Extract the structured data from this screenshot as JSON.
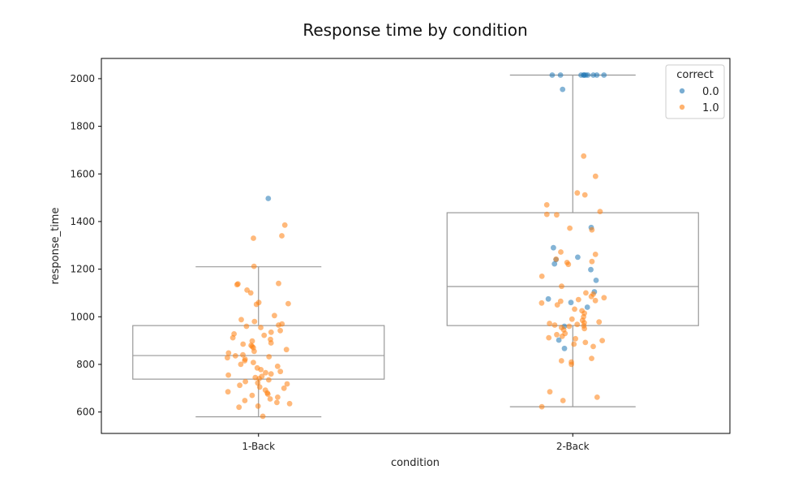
{
  "chart_data": {
    "type": "box-strip",
    "title": "Response time by condition",
    "xlabel": "condition",
    "ylabel": "response_time",
    "categories": [
      "1-Back",
      "2-Back"
    ],
    "ylim": [
      510,
      2085
    ],
    "yticks": [
      600,
      800,
      1000,
      1200,
      1400,
      1600,
      1800,
      2000
    ],
    "grid": false,
    "legend": {
      "title": "correct",
      "placement": "top-right",
      "entries": [
        {
          "label": "0.0",
          "color": "#1f77b4"
        },
        {
          "label": "1.0",
          "color": "#ff7f0e"
        }
      ]
    },
    "box_color": "#999999",
    "boxes": [
      {
        "category": "1-Back",
        "whisker_low": 580,
        "q1": 738,
        "median": 837,
        "q3": 963,
        "whisker_high": 1210
      },
      {
        "category": "2-Back",
        "whisker_low": 622,
        "q1": 963,
        "median": 1127,
        "q3": 1437,
        "whisker_high": 2015
      }
    ],
    "series": [
      {
        "name": "0.0",
        "color": "#1f77b4",
        "points": [
          [
            "1-Back",
            1497
          ],
          [
            "2-Back",
            2015
          ],
          [
            "2-Back",
            2015
          ],
          [
            "2-Back",
            2015
          ],
          [
            "2-Back",
            2015
          ],
          [
            "2-Back",
            2015
          ],
          [
            "2-Back",
            2015
          ],
          [
            "2-Back",
            2015
          ],
          [
            "2-Back",
            2015
          ],
          [
            "2-Back",
            2015
          ],
          [
            "2-Back",
            2015
          ],
          [
            "2-Back",
            1955
          ],
          [
            "2-Back",
            1375
          ],
          [
            "2-Back",
            1290
          ],
          [
            "2-Back",
            1250
          ],
          [
            "2-Back",
            1240
          ],
          [
            "2-Back",
            1222
          ],
          [
            "2-Back",
            1198
          ],
          [
            "2-Back",
            1153
          ],
          [
            "2-Back",
            1105
          ],
          [
            "2-Back",
            1075
          ],
          [
            "2-Back",
            1060
          ],
          [
            "2-Back",
            1040
          ],
          [
            "2-Back",
            960
          ],
          [
            "2-Back",
            902
          ],
          [
            "2-Back",
            867
          ]
        ]
      },
      {
        "name": "1.0",
        "color": "#ff7f0e",
        "points": [
          [
            "1-Back",
            1385
          ],
          [
            "1-Back",
            1340
          ],
          [
            "1-Back",
            1330
          ],
          [
            "1-Back",
            1212
          ],
          [
            "1-Back",
            1140
          ],
          [
            "1-Back",
            1138
          ],
          [
            "1-Back",
            1135
          ],
          [
            "1-Back",
            1112
          ],
          [
            "1-Back",
            1100
          ],
          [
            "1-Back",
            1060
          ],
          [
            "1-Back",
            1055
          ],
          [
            "1-Back",
            1052
          ],
          [
            "1-Back",
            1005
          ],
          [
            "1-Back",
            988
          ],
          [
            "1-Back",
            980
          ],
          [
            "1-Back",
            970
          ],
          [
            "1-Back",
            965
          ],
          [
            "1-Back",
            960
          ],
          [
            "1-Back",
            955
          ],
          [
            "1-Back",
            942
          ],
          [
            "1-Back",
            935
          ],
          [
            "1-Back",
            928
          ],
          [
            "1-Back",
            922
          ],
          [
            "1-Back",
            912
          ],
          [
            "1-Back",
            905
          ],
          [
            "1-Back",
            898
          ],
          [
            "1-Back",
            890
          ],
          [
            "1-Back",
            885
          ],
          [
            "1-Back",
            880
          ],
          [
            "1-Back",
            875
          ],
          [
            "1-Back",
            870
          ],
          [
            "1-Back",
            862
          ],
          [
            "1-Back",
            855
          ],
          [
            "1-Back",
            848
          ],
          [
            "1-Back",
            840
          ],
          [
            "1-Back",
            836
          ],
          [
            "1-Back",
            832
          ],
          [
            "1-Back",
            828
          ],
          [
            "1-Back",
            822
          ],
          [
            "1-Back",
            815
          ],
          [
            "1-Back",
            808
          ],
          [
            "1-Back",
            800
          ],
          [
            "1-Back",
            792
          ],
          [
            "1-Back",
            785
          ],
          [
            "1-Back",
            778
          ],
          [
            "1-Back",
            770
          ],
          [
            "1-Back",
            765
          ],
          [
            "1-Back",
            760
          ],
          [
            "1-Back",
            755
          ],
          [
            "1-Back",
            750
          ],
          [
            "1-Back",
            745
          ],
          [
            "1-Back",
            740
          ],
          [
            "1-Back",
            735
          ],
          [
            "1-Back",
            728
          ],
          [
            "1-Back",
            722
          ],
          [
            "1-Back",
            718
          ],
          [
            "1-Back",
            712
          ],
          [
            "1-Back",
            705
          ],
          [
            "1-Back",
            700
          ],
          [
            "1-Back",
            692
          ],
          [
            "1-Back",
            685
          ],
          [
            "1-Back",
            680
          ],
          [
            "1-Back",
            675
          ],
          [
            "1-Back",
            670
          ],
          [
            "1-Back",
            662
          ],
          [
            "1-Back",
            655
          ],
          [
            "1-Back",
            648
          ],
          [
            "1-Back",
            640
          ],
          [
            "1-Back",
            635
          ],
          [
            "1-Back",
            625
          ],
          [
            "1-Back",
            620
          ],
          [
            "1-Back",
            582
          ],
          [
            "2-Back",
            1675
          ],
          [
            "2-Back",
            1590
          ],
          [
            "2-Back",
            1520
          ],
          [
            "2-Back",
            1512
          ],
          [
            "2-Back",
            1470
          ],
          [
            "2-Back",
            1442
          ],
          [
            "2-Back",
            1430
          ],
          [
            "2-Back",
            1428
          ],
          [
            "2-Back",
            1372
          ],
          [
            "2-Back",
            1365
          ],
          [
            "2-Back",
            1272
          ],
          [
            "2-Back",
            1262
          ],
          [
            "2-Back",
            1242
          ],
          [
            "2-Back",
            1232
          ],
          [
            "2-Back",
            1228
          ],
          [
            "2-Back",
            1220
          ],
          [
            "2-Back",
            1170
          ],
          [
            "2-Back",
            1128
          ],
          [
            "2-Back",
            1100
          ],
          [
            "2-Back",
            1095
          ],
          [
            "2-Back",
            1085
          ],
          [
            "2-Back",
            1080
          ],
          [
            "2-Back",
            1072
          ],
          [
            "2-Back",
            1068
          ],
          [
            "2-Back",
            1065
          ],
          [
            "2-Back",
            1058
          ],
          [
            "2-Back",
            1050
          ],
          [
            "2-Back",
            1032
          ],
          [
            "2-Back",
            1025
          ],
          [
            "2-Back",
            1015
          ],
          [
            "2-Back",
            1000
          ],
          [
            "2-Back",
            990
          ],
          [
            "2-Back",
            985
          ],
          [
            "2-Back",
            978
          ],
          [
            "2-Back",
            975
          ],
          [
            "2-Back",
            972
          ],
          [
            "2-Back",
            968
          ],
          [
            "2-Back",
            965
          ],
          [
            "2-Back",
            962
          ],
          [
            "2-Back",
            960
          ],
          [
            "2-Back",
            955
          ],
          [
            "2-Back",
            950
          ],
          [
            "2-Back",
            945
          ],
          [
            "2-Back",
            930
          ],
          [
            "2-Back",
            925
          ],
          [
            "2-Back",
            918
          ],
          [
            "2-Back",
            912
          ],
          [
            "2-Back",
            908
          ],
          [
            "2-Back",
            900
          ],
          [
            "2-Back",
            892
          ],
          [
            "2-Back",
            885
          ],
          [
            "2-Back",
            875
          ],
          [
            "2-Back",
            825
          ],
          [
            "2-Back",
            815
          ],
          [
            "2-Back",
            810
          ],
          [
            "2-Back",
            800
          ],
          [
            "2-Back",
            685
          ],
          [
            "2-Back",
            662
          ],
          [
            "2-Back",
            648
          ],
          [
            "2-Back",
            622
          ]
        ]
      }
    ]
  }
}
